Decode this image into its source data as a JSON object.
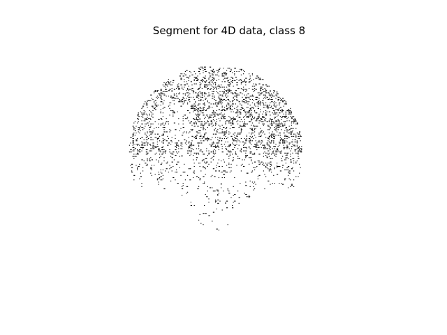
{
  "figure": {
    "title": "Segment for 4D data, class 8",
    "background_color": "#ffffff",
    "foreground_color": "#000000"
  },
  "image": {
    "description_name": "segmentation-mask",
    "shape": "circular",
    "colors": [
      "#000000",
      "#ffffff"
    ],
    "dense_region": "upper half",
    "sparse_region": "lower half"
  }
}
